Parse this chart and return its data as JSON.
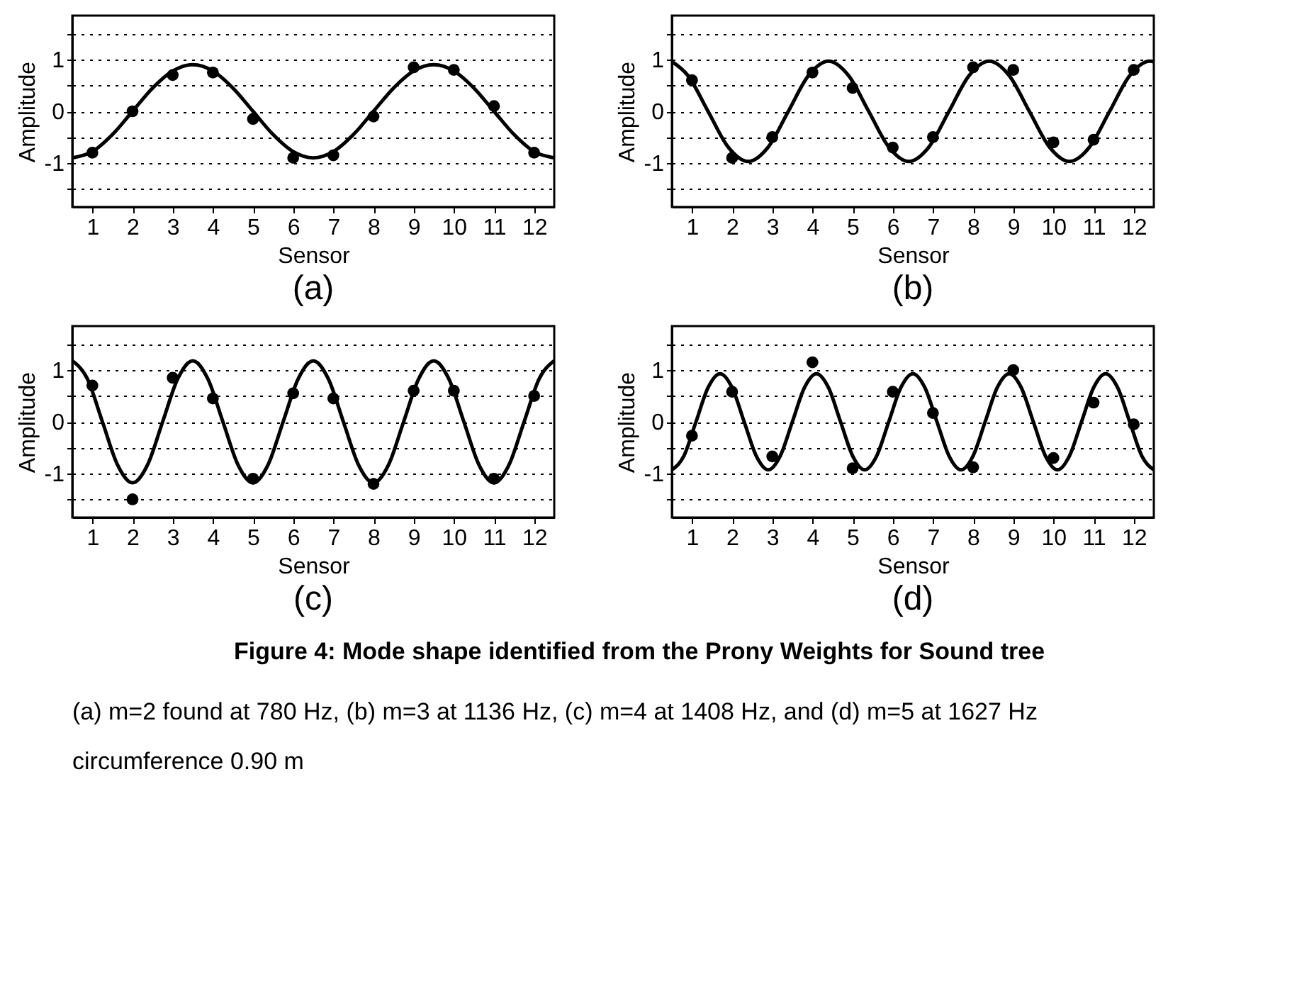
{
  "chart_data": [
    {
      "type": "line",
      "title": "(a)",
      "xlabel": "Sensor",
      "ylabel": "Amplitude",
      "xlim": [
        0.5,
        12.5
      ],
      "ylim": [
        -1.85,
        1.85
      ],
      "xticks": [
        1,
        2,
        3,
        4,
        5,
        6,
        7,
        8,
        9,
        10,
        11,
        12
      ],
      "yticks": [
        {
          "value": -1.5,
          "label": null
        },
        -1,
        {
          "value": -0.5,
          "label": null
        },
        0,
        {
          "value": 0.5,
          "label": null
        },
        1,
        {
          "value": 1.5,
          "label": null
        }
      ],
      "grid": "y",
      "series": [
        {
          "type": "line",
          "color": "#000000",
          "line_style": "solid",
          "marker": "none",
          "x": [
            0.5,
            1,
            1.5,
            2,
            2.5,
            3,
            3.5,
            4,
            4.5,
            5,
            5.5,
            6,
            6.5,
            7,
            7.5,
            8,
            8.5,
            9,
            9.5,
            10,
            10.5,
            11,
            11.5,
            12,
            12.5
          ],
          "values": [
            -0.9,
            -0.78,
            -0.45,
            0,
            0.45,
            0.78,
            0.9,
            0.78,
            0.45,
            0,
            -0.45,
            -0.78,
            -0.9,
            -0.78,
            -0.45,
            0,
            0.45,
            0.78,
            0.9,
            0.78,
            0.45,
            0,
            -0.45,
            -0.78,
            -0.9
          ]
        },
        {
          "type": "scatter",
          "color": "#000000",
          "marker": "circle",
          "x": [
            1,
            2,
            3,
            4,
            5,
            6,
            7,
            8,
            9,
            10,
            11,
            12
          ],
          "values": [
            -0.8,
            0,
            0.7,
            0.75,
            -0.15,
            -0.9,
            -0.85,
            -0.1,
            0.85,
            0.8,
            0.1,
            -0.8
          ]
        }
      ]
    },
    {
      "type": "line",
      "title": "(b)",
      "xlabel": "Sensor",
      "ylabel": "Amplitude",
      "xlim": [
        0.5,
        12.5
      ],
      "ylim": [
        -1.85,
        1.85
      ],
      "xticks": [
        1,
        2,
        3,
        4,
        5,
        6,
        7,
        8,
        9,
        10,
        11,
        12
      ],
      "yticks": [
        {
          "value": -1.5,
          "label": null
        },
        -1,
        {
          "value": -0.5,
          "label": null
        },
        0,
        {
          "value": 0.5,
          "label": null
        },
        1,
        {
          "value": 1.5,
          "label": null
        }
      ],
      "grid": "y",
      "series": [
        {
          "type": "line",
          "color": "#000000",
          "line_style": "solid",
          "marker": "none",
          "x": [
            0.5,
            0.9,
            1.4,
            1.9,
            2.4,
            2.9,
            3.4,
            3.9,
            4.4,
            4.9,
            5.4,
            5.9,
            6.4,
            6.9,
            7.4,
            7.9,
            8.4,
            8.9,
            9.4,
            9.9,
            10.4,
            10.9,
            11.4,
            11.9,
            12.4,
            12.5
          ],
          "values": [
            0.96,
            0.69,
            0,
            -0.69,
            -0.97,
            -0.69,
            0,
            0.69,
            0.97,
            0.69,
            0,
            -0.69,
            -0.97,
            -0.69,
            0,
            0.69,
            0.97,
            0.69,
            0,
            -0.69,
            -0.97,
            -0.69,
            0,
            0.69,
            0.97,
            0.96
          ]
        },
        {
          "type": "scatter",
          "color": "#000000",
          "marker": "circle",
          "x": [
            1,
            2,
            3,
            4,
            5,
            6,
            7,
            8,
            9,
            10,
            11,
            12
          ],
          "values": [
            0.6,
            -0.9,
            -0.5,
            0.75,
            0.45,
            -0.7,
            -0.5,
            0.85,
            0.8,
            -0.6,
            -0.55,
            0.8
          ]
        }
      ]
    },
    {
      "type": "line",
      "title": "(c)",
      "xlabel": "Sensor",
      "ylabel": "Amplitude",
      "xlim": [
        0.5,
        12.5
      ],
      "ylim": [
        -1.85,
        1.85
      ],
      "xticks": [
        1,
        2,
        3,
        4,
        5,
        6,
        7,
        8,
        9,
        10,
        11,
        12
      ],
      "yticks": [
        {
          "value": -1.5,
          "label": null
        },
        -1,
        {
          "value": -0.5,
          "label": null
        },
        0,
        {
          "value": 0.5,
          "label": null
        },
        1,
        {
          "value": 1.5,
          "label": null
        }
      ],
      "grid": "y",
      "series": [
        {
          "type": "line",
          "color": "#000000",
          "line_style": "solid",
          "marker": "none",
          "x": [
            0.5,
            0.875,
            1.25,
            1.625,
            2,
            2.375,
            2.75,
            3.125,
            3.5,
            3.875,
            4.25,
            4.625,
            5,
            5.375,
            5.75,
            6.125,
            6.5,
            6.875,
            7.25,
            7.625,
            8,
            8.375,
            8.75,
            9.125,
            9.5,
            9.875,
            10.25,
            10.625,
            11,
            11.375,
            11.75,
            12.125,
            12.5
          ],
          "values": [
            1.18,
            0.83,
            0,
            -0.83,
            -1.18,
            -0.83,
            0,
            0.83,
            1.18,
            0.83,
            0,
            -0.83,
            -1.18,
            -0.83,
            0,
            0.83,
            1.18,
            0.83,
            0,
            -0.83,
            -1.18,
            -0.83,
            0,
            0.83,
            1.18,
            0.83,
            0,
            -0.83,
            -1.18,
            -0.83,
            0,
            0.83,
            1.18
          ]
        },
        {
          "type": "scatter",
          "color": "#000000",
          "marker": "circle",
          "x": [
            1,
            2,
            3,
            4,
            5,
            6,
            7,
            8,
            9,
            10,
            11,
            12
          ],
          "values": [
            0.7,
            -1.5,
            0.85,
            0.45,
            -1.1,
            0.55,
            0.45,
            -1.2,
            0.6,
            0.6,
            -1.1,
            0.5
          ]
        }
      ]
    },
    {
      "type": "line",
      "title": "(d)",
      "xlabel": "Sensor",
      "ylabel": "Amplitude",
      "xlim": [
        0.5,
        12.5
      ],
      "ylim": [
        -1.85,
        1.85
      ],
      "xticks": [
        1,
        2,
        3,
        4,
        5,
        6,
        7,
        8,
        9,
        10,
        11,
        12
      ],
      "yticks": [
        {
          "value": -1.5,
          "label": null
        },
        -1,
        {
          "value": -0.5,
          "label": null
        },
        0,
        {
          "value": 0.5,
          "label": null
        },
        1,
        {
          "value": 1.5,
          "label": null
        }
      ],
      "grid": "y",
      "annotations": [
        "Figure 4: Mode shape identified from the Prony Weights for Sound tree",
        "(a) m=2 found at 780 Hz, (b) m=3 at 1136 Hz, (c) m=4 at 1408 Hz, and (d) m=5 at 1627 Hz",
        "circumference 0.90 m"
      ],
      "series": [
        {
          "type": "line",
          "color": "#000000",
          "line_style": "solid",
          "marker": "none",
          "x": [
            0.5,
            0.8,
            1.1,
            1.4,
            1.7,
            2,
            2.3,
            2.6,
            2.9,
            3.2,
            3.5,
            3.8,
            4.1,
            4.4,
            4.7,
            5,
            5.3,
            5.6,
            5.9,
            6.2,
            6.5,
            6.8,
            7.1,
            7.4,
            7.7,
            8,
            8.3,
            8.6,
            8.9,
            9.2,
            9.5,
            9.8,
            10.1,
            10.4,
            10.7,
            11,
            11.3,
            11.6,
            11.9,
            12.2,
            12.5
          ],
          "values": [
            -0.93,
            -0.66,
            0,
            0.66,
            0.93,
            0.66,
            0,
            -0.66,
            -0.93,
            -0.66,
            0,
            0.66,
            0.93,
            0.66,
            0,
            -0.66,
            -0.93,
            -0.66,
            0,
            0.66,
            0.93,
            0.66,
            0,
            -0.66,
            -0.93,
            -0.66,
            0,
            0.66,
            0.93,
            0.66,
            0,
            -0.66,
            -0.93,
            -0.66,
            0,
            0.66,
            0.93,
            0.66,
            0,
            -0.66,
            -0.93
          ]
        },
        {
          "type": "scatter",
          "color": "#000000",
          "marker": "circle",
          "x": [
            1,
            2,
            3,
            4,
            5,
            6,
            7,
            8,
            9,
            10,
            11,
            12
          ],
          "values": [
            -0.27,
            0.58,
            -0.67,
            1.15,
            -0.9,
            0.58,
            0.17,
            -0.88,
            1.0,
            -0.7,
            0.37,
            -0.05
          ]
        }
      ]
    }
  ]
}
